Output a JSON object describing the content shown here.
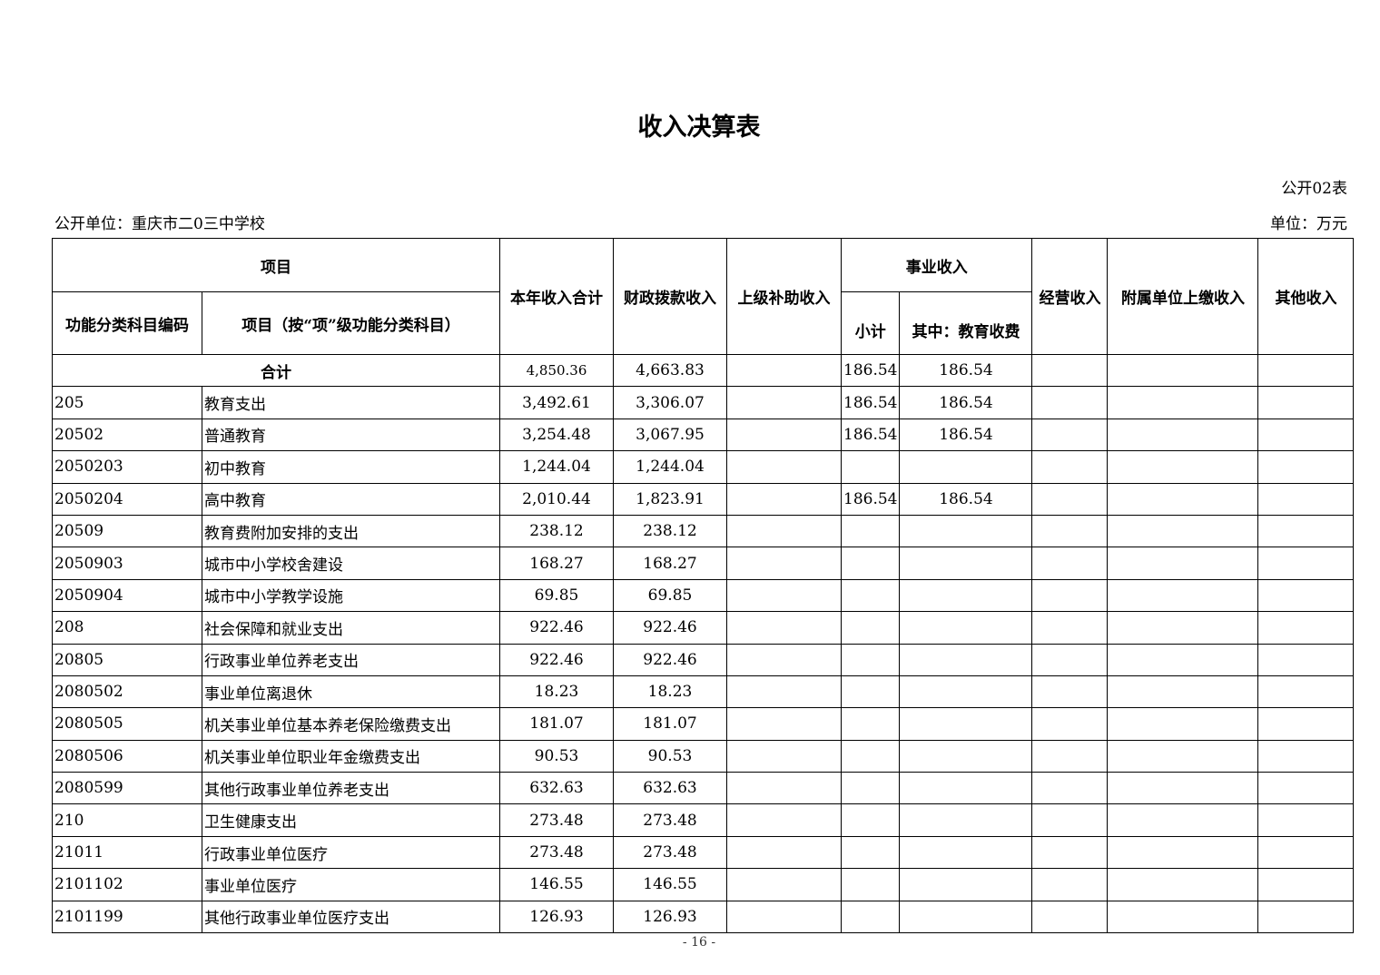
{
  "title": "收入决算表",
  "table_no": "公开02表",
  "unit_name": "公开单位：重庆市二0三中学校",
  "unit": "单位：万元",
  "headers": {
    "project": "项目",
    "code": "功能分类科目编码",
    "name": "项目（按“项”级功能分类科目）",
    "total": "本年收入合计",
    "fiscal": "财政拨款收入",
    "superior": "上级补助收入",
    "business": "事业收入",
    "subtotal": "小计",
    "edu_fee": "其中：教育收费",
    "operating": "经营收入",
    "affiliated": "附属单位上缴收入",
    "other": "其他收入"
  },
  "total_row": {
    "label": "合计",
    "total": "4,850.36",
    "fiscal": "4,663.83",
    "superior": "",
    "subtotal": "186.54",
    "edu_fee": "186.54",
    "operating": "",
    "affiliated": "",
    "other": ""
  },
  "rows": [
    {
      "code": "205",
      "name": "教育支出",
      "total": "3,492.61",
      "fiscal": "3,306.07",
      "subtotal": "186.54",
      "edu_fee": "186.54"
    },
    {
      "code": "20502",
      "name": "普通教育",
      "total": "3,254.48",
      "fiscal": "3,067.95",
      "subtotal": "186.54",
      "edu_fee": "186.54"
    },
    {
      "code": "2050203",
      "name": "初中教育",
      "total": "1,244.04",
      "fiscal": "1,244.04",
      "subtotal": "",
      "edu_fee": ""
    },
    {
      "code": "2050204",
      "name": "高中教育",
      "total": "2,010.44",
      "fiscal": "1,823.91",
      "subtotal": "186.54",
      "edu_fee": "186.54"
    },
    {
      "code": "20509",
      "name": "教育费附加安排的支出",
      "total": "238.12",
      "fiscal": "238.12",
      "subtotal": "",
      "edu_fee": ""
    },
    {
      "code": "2050903",
      "name": "城市中小学校舍建设",
      "total": "168.27",
      "fiscal": "168.27",
      "subtotal": "",
      "edu_fee": ""
    },
    {
      "code": "2050904",
      "name": "城市中小学教学设施",
      "total": "69.85",
      "fiscal": "69.85",
      "subtotal": "",
      "edu_fee": ""
    },
    {
      "code": "208",
      "name": "社会保障和就业支出",
      "total": "922.46",
      "fiscal": "922.46",
      "subtotal": "",
      "edu_fee": ""
    },
    {
      "code": "20805",
      "name": "行政事业单位养老支出",
      "total": "922.46",
      "fiscal": "922.46",
      "subtotal": "",
      "edu_fee": ""
    },
    {
      "code": "2080502",
      "name": "事业单位离退休",
      "total": "18.23",
      "fiscal": "18.23",
      "subtotal": "",
      "edu_fee": ""
    },
    {
      "code": "2080505",
      "name": "机关事业单位基本养老保险缴费支出",
      "total": "181.07",
      "fiscal": "181.07",
      "subtotal": "",
      "edu_fee": ""
    },
    {
      "code": "2080506",
      "name": "机关事业单位职业年金缴费支出",
      "total": "90.53",
      "fiscal": "90.53",
      "subtotal": "",
      "edu_fee": ""
    },
    {
      "code": "2080599",
      "name": "其他行政事业单位养老支出",
      "total": "632.63",
      "fiscal": "632.63",
      "subtotal": "",
      "edu_fee": ""
    },
    {
      "code": "210",
      "name": "卫生健康支出",
      "total": "273.48",
      "fiscal": "273.48",
      "subtotal": "",
      "edu_fee": ""
    },
    {
      "code": "21011",
      "name": "行政事业单位医疗",
      "total": "273.48",
      "fiscal": "273.48",
      "subtotal": "",
      "edu_fee": ""
    },
    {
      "code": "2101102",
      "name": "事业单位医疗",
      "total": "146.55",
      "fiscal": "146.55",
      "subtotal": "",
      "edu_fee": ""
    },
    {
      "code": "2101199",
      "name": "其他行政事业单位医疗支出",
      "total": "126.93",
      "fiscal": "126.93",
      "subtotal": "",
      "edu_fee": ""
    }
  ],
  "page_number": "- 16 -"
}
